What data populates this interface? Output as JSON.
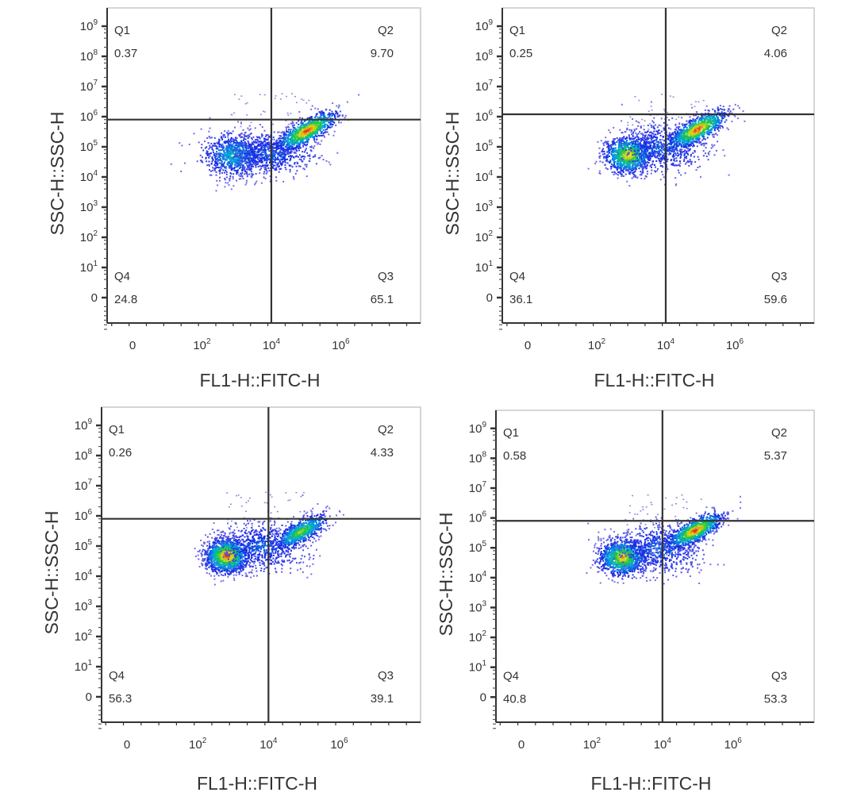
{
  "chart_data": {
    "type": "scatter",
    "subtype": "flow-cytometry-density-dot-plot",
    "xlabel": "FL1-H::FITC-H",
    "ylabel": "SSC-H::SSC-H",
    "x_ticks": [
      "0",
      "10^2",
      "10^4",
      "10^6"
    ],
    "y_ticks": [
      "0",
      "10^1",
      "10^2",
      "10^3",
      "10^4",
      "10^5",
      "10^6",
      "10^7",
      "10^8",
      "10^9"
    ],
    "x_scale": "log",
    "y_scale": "log",
    "panels": [
      {
        "gate": {
          "x": 10000,
          "y": 800000
        },
        "quadrants": [
          {
            "name": "Q1",
            "value": "0.37"
          },
          {
            "name": "Q2",
            "value": "9.70"
          },
          {
            "name": "Q3",
            "value": "65.1"
          },
          {
            "name": "Q4",
            "value": "24.8"
          }
        ]
      },
      {
        "gate": {
          "x": 10000,
          "y": 1200000
        },
        "quadrants": [
          {
            "name": "Q1",
            "value": "0.25"
          },
          {
            "name": "Q2",
            "value": "4.06"
          },
          {
            "name": "Q3",
            "value": "59.6"
          },
          {
            "name": "Q4",
            "value": "36.1"
          }
        ]
      },
      {
        "gate": {
          "x": 10000,
          "y": 800000
        },
        "quadrants": [
          {
            "name": "Q1",
            "value": "0.26"
          },
          {
            "name": "Q2",
            "value": "4.33"
          },
          {
            "name": "Q3",
            "value": "39.1"
          },
          {
            "name": "Q4",
            "value": "56.3"
          }
        ]
      },
      {
        "gate": {
          "x": 10000,
          "y": 800000
        },
        "quadrants": [
          {
            "name": "Q1",
            "value": "0.58"
          },
          {
            "name": "Q2",
            "value": "5.37"
          },
          {
            "name": "Q3",
            "value": "53.3"
          },
          {
            "name": "Q4",
            "value": "40.8"
          }
        ]
      }
    ]
  }
}
